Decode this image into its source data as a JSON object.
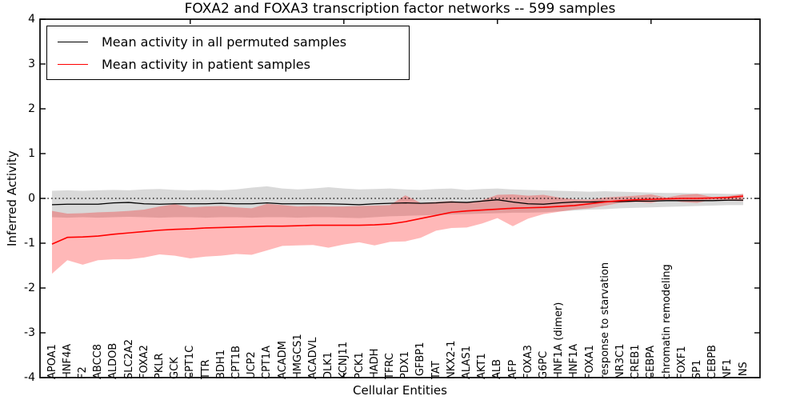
{
  "chart_data": {
    "type": "line",
    "title": "FOXA2 and FOXA3 transcription factor networks -- 599 samples",
    "xlabel": "Cellular Entities",
    "ylabel": "Inferred Activity",
    "ylim": [
      -4,
      4
    ],
    "ytick_labels": [
      "4",
      "3",
      "2",
      "1",
      "0",
      "-1",
      "-2",
      "-3",
      "-4"
    ],
    "zero_reference_line": {
      "y": 0,
      "style": "dotted",
      "color": "#000000"
    },
    "legend_position": "upper left",
    "grid": false,
    "categories": [
      "APOA1",
      "HNF4A",
      "F2",
      "ABCC8",
      "ALDOB",
      "SLC2A2",
      "FOXA2",
      "PKLR",
      "GCK",
      "CPT1C",
      "TTR",
      "BDH1",
      "CPT1B",
      "UCP2",
      "CPT1A",
      "ACADM",
      "HMGCS1",
      "ACADVL",
      "DLK1",
      "KCNJ11",
      "PCK1",
      "HADH",
      "TFRC",
      "PDX1",
      "IGFBP1",
      "TAT",
      "NKX2-1",
      "ALAS1",
      "AKT1",
      "ALB",
      "AFP",
      "FOXA3",
      "G6PC",
      "HNF1A (dimer)",
      "HNF1A",
      "FOXA1",
      "response to starvation",
      "NR3C1",
      "CREB1",
      "CEBPA",
      "chromatin remodeling",
      "FOXF1",
      "SP1",
      "CEBPB",
      "NF1",
      "INS"
    ],
    "series": [
      {
        "name": "Mean activity in all permuted samples",
        "color": "#000000",
        "line_width": 1.3,
        "values": [
          -0.14,
          -0.13,
          -0.13,
          -0.13,
          -0.1,
          -0.09,
          -0.12,
          -0.13,
          -0.12,
          -0.12,
          -0.12,
          -0.11,
          -0.12,
          -0.12,
          -0.1,
          -0.12,
          -0.12,
          -0.12,
          -0.12,
          -0.13,
          -0.14,
          -0.12,
          -0.11,
          -0.1,
          -0.11,
          -0.1,
          -0.08,
          -0.09,
          -0.06,
          -0.03,
          -0.08,
          -0.12,
          -0.13,
          -0.1,
          -0.08,
          -0.08,
          -0.07,
          -0.07,
          -0.06,
          -0.06,
          -0.05,
          -0.05,
          -0.05,
          -0.05,
          -0.04,
          -0.04
        ],
        "band_fill": "rgba(0,0,0,0.15)",
        "band_upper": [
          0.17,
          0.18,
          0.17,
          0.18,
          0.19,
          0.18,
          0.2,
          0.21,
          0.19,
          0.18,
          0.19,
          0.18,
          0.2,
          0.24,
          0.27,
          0.22,
          0.2,
          0.22,
          0.25,
          0.22,
          0.2,
          0.21,
          0.22,
          0.2,
          0.19,
          0.21,
          0.22,
          0.19,
          0.21,
          0.22,
          0.2,
          0.19,
          0.18,
          0.17,
          0.16,
          0.15,
          0.16,
          0.15,
          0.14,
          0.13,
          0.12,
          0.12,
          0.11,
          0.11,
          0.1,
          0.1
        ],
        "band_lower": [
          -0.42,
          -0.43,
          -0.42,
          -0.43,
          -0.42,
          -0.41,
          -0.42,
          -0.43,
          -0.42,
          -0.42,
          -0.43,
          -0.42,
          -0.42,
          -0.43,
          -0.42,
          -0.42,
          -0.43,
          -0.42,
          -0.42,
          -0.43,
          -0.44,
          -0.42,
          -0.4,
          -0.39,
          -0.38,
          -0.37,
          -0.36,
          -0.35,
          -0.34,
          -0.33,
          -0.32,
          -0.32,
          -0.31,
          -0.29,
          -0.27,
          -0.25,
          -0.24,
          -0.22,
          -0.21,
          -0.2,
          -0.19,
          -0.18,
          -0.17,
          -0.16,
          -0.15,
          -0.15
        ]
      },
      {
        "name": "Mean activity in patient samples",
        "color": "#ff0000",
        "line_width": 1.6,
        "values": [
          -1.02,
          -0.87,
          -0.86,
          -0.84,
          -0.8,
          -0.77,
          -0.74,
          -0.71,
          -0.69,
          -0.68,
          -0.66,
          -0.65,
          -0.64,
          -0.63,
          -0.62,
          -0.62,
          -0.61,
          -0.6,
          -0.6,
          -0.6,
          -0.6,
          -0.59,
          -0.57,
          -0.52,
          -0.45,
          -0.38,
          -0.31,
          -0.28,
          -0.26,
          -0.24,
          -0.22,
          -0.21,
          -0.2,
          -0.18,
          -0.16,
          -0.12,
          -0.08,
          -0.05,
          -0.03,
          -0.02,
          -0.01,
          0.0,
          0.0,
          0.01,
          0.02,
          0.05
        ],
        "band_fill": "rgba(255,0,0,0.28)",
        "band_upper": [
          -0.28,
          -0.34,
          -0.33,
          -0.31,
          -0.3,
          -0.28,
          -0.25,
          -0.18,
          -0.13,
          -0.2,
          -0.18,
          -0.17,
          -0.2,
          -0.22,
          -0.12,
          -0.15,
          -0.18,
          -0.17,
          -0.18,
          -0.18,
          -0.17,
          -0.16,
          -0.15,
          0.07,
          -0.1,
          -0.08,
          -0.06,
          -0.1,
          -0.04,
          0.08,
          0.09,
          0.06,
          0.08,
          0.02,
          -0.02,
          -0.03,
          0.02,
          0.04,
          0.06,
          0.09,
          0.02,
          0.08,
          0.1,
          0.03,
          0.05,
          0.1
        ],
        "band_lower": [
          -1.68,
          -1.38,
          -1.48,
          -1.38,
          -1.36,
          -1.36,
          -1.32,
          -1.25,
          -1.28,
          -1.34,
          -1.3,
          -1.28,
          -1.24,
          -1.26,
          -1.16,
          -1.06,
          -1.05,
          -1.04,
          -1.1,
          -1.03,
          -0.98,
          -1.05,
          -0.97,
          -0.96,
          -0.88,
          -0.72,
          -0.66,
          -0.65,
          -0.56,
          -0.44,
          -0.62,
          -0.45,
          -0.35,
          -0.3,
          -0.25,
          -0.22,
          -0.16,
          -0.1,
          -0.08,
          -0.1,
          -0.03,
          -0.08,
          -0.1,
          -0.03,
          -0.05,
          -0.06
        ]
      }
    ]
  }
}
